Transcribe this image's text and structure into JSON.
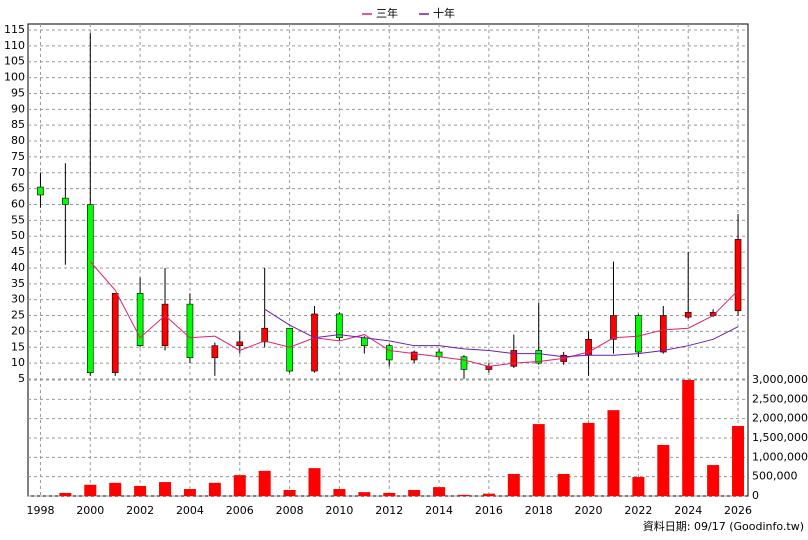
{
  "chart_data": {
    "type": "candlestick",
    "x": [
      1998,
      1999,
      2000,
      2001,
      2002,
      2003,
      2004,
      2005,
      2006,
      2007,
      2008,
      2009,
      2010,
      2011,
      2012,
      2013,
      2014,
      2015,
      2016,
      2017,
      2018,
      2019,
      2020,
      2021,
      2022,
      2023,
      2024,
      2025,
      2026
    ],
    "open": [
      65.5,
      62,
      60,
      7,
      32,
      15.5,
      28.6,
      11.7,
      15.5,
      16.7,
      21,
      7.5,
      25.5,
      18,
      15.5,
      11,
      13.5,
      12,
      8,
      9,
      14,
      10.5,
      12.5,
      17.5,
      25,
      13.5,
      24.5,
      25,
      26.5
    ],
    "high": [
      70,
      73,
      114,
      32,
      37,
      40,
      32,
      16.5,
      20,
      40,
      21,
      28,
      26,
      18.5,
      16,
      14,
      14.5,
      12.5,
      10,
      19,
      29,
      13.5,
      20,
      42,
      25.5,
      28,
      45,
      27,
      57
    ],
    "low": [
      59,
      41,
      6,
      6,
      15,
      14,
      10,
      6,
      13,
      15,
      7,
      7,
      17,
      13,
      9,
      10,
      11,
      5,
      7,
      8.5,
      9.5,
      9.5,
      6,
      13,
      12,
      13,
      24,
      24.5,
      25
    ],
    "close": [
      63,
      60,
      7,
      32,
      15.5,
      28.6,
      11.7,
      15.5,
      16.7,
      21,
      7.5,
      25.5,
      18,
      15.5,
      11,
      13.5,
      12,
      8,
      9,
      14,
      10,
      12.5,
      17.5,
      25,
      13.5,
      25,
      26,
      26,
      49
    ],
    "up_color": "#ff0000",
    "down_color": "#00ff00",
    "moving_averages": [
      {
        "name": "三年",
        "color": "#e0206f",
        "values": [
          null,
          null,
          42,
          33,
          18,
          25,
          18,
          18.5,
          14,
          17,
          15,
          18,
          17,
          19,
          14,
          13,
          12,
          11,
          9,
          10,
          10.5,
          11.5,
          13.5,
          18,
          18.5,
          20.5,
          21,
          25,
          33
        ]
      },
      {
        "name": "十年",
        "color": "#6a1fb0",
        "values": [
          null,
          null,
          null,
          null,
          null,
          null,
          null,
          null,
          null,
          27,
          22,
          18,
          19,
          18,
          17,
          15.5,
          15.5,
          14.5,
          14,
          13,
          13,
          12,
          12.5,
          12.5,
          13,
          14,
          15.5,
          17.5,
          21.5
        ]
      }
    ],
    "volume": {
      "color": "#ff0000",
      "values": [
        0,
        80000,
        290000,
        340000,
        260000,
        360000,
        180000,
        340000,
        540000,
        650000,
        155000,
        720000,
        180000,
        100000,
        80000,
        155000,
        230000,
        30000,
        60000,
        570000,
        1860000,
        570000,
        1890000,
        2220000,
        490000,
        1320000,
        3000000,
        800000,
        1810000
      ]
    },
    "xlim": [
      1997.5,
      2026.4
    ],
    "xticks": [
      1998,
      2000,
      2002,
      2004,
      2006,
      2008,
      2010,
      2012,
      2014,
      2016,
      2018,
      2020,
      2022,
      2024,
      2026
    ],
    "ylim": [
      5,
      115
    ],
    "yticks": [
      5,
      10,
      15,
      20,
      25,
      30,
      35,
      40,
      45,
      50,
      55,
      60,
      65,
      70,
      75,
      80,
      85,
      90,
      95,
      100,
      105,
      110,
      115
    ],
    "y2lim": [
      0,
      3000000
    ],
    "y2ticks": [
      0,
      {
        "value": 500000,
        "label": "500,000"
      },
      {
        "value": 1000000,
        "label": "1,000,000"
      },
      {
        "value": 1500000,
        "label": "1,500,000"
      },
      {
        "value": 2000000,
        "label": "2,000,000"
      },
      {
        "value": 2500000,
        "label": "2,500,000"
      },
      {
        "value": 3000000,
        "label": "3,000,000"
      }
    ],
    "grid": true,
    "footnote": "資料日期: 09/17 (Goodinfo.tw)"
  }
}
